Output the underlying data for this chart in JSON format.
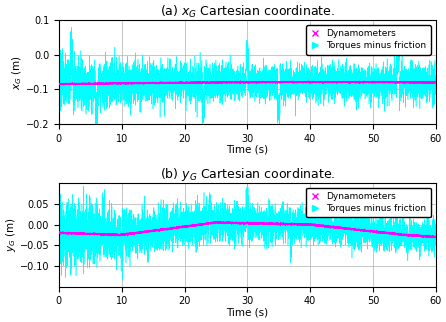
{
  "title_a": "(a) $x_G$ Cartesian coordinate.",
  "title_b": "(b) $y_G$ Cartesian coordinate.",
  "xlabel": "Time (s)",
  "ylabel_a": "$x_G$ (m)",
  "ylabel_b": "$y_G$ (m)",
  "xlim": [
    0,
    60
  ],
  "ylim_a": [
    -0.2,
    0.1
  ],
  "ylim_b": [
    -0.15,
    0.1
  ],
  "xticks": [
    0,
    10,
    20,
    30,
    40,
    50,
    60
  ],
  "yticks_a": [
    -0.2,
    -0.1,
    0.0,
    0.1
  ],
  "yticks_b": [
    -0.1,
    -0.05,
    0.0,
    0.05
  ],
  "legend_entries": [
    "Dynamometers",
    "Torques minus friction"
  ],
  "color_dynamo": "#FF00FF",
  "color_torques": "#00FFFF",
  "seed": 42,
  "n_points": 6000,
  "background_color": "#ffffff",
  "grid_color": "#b0b0b0"
}
